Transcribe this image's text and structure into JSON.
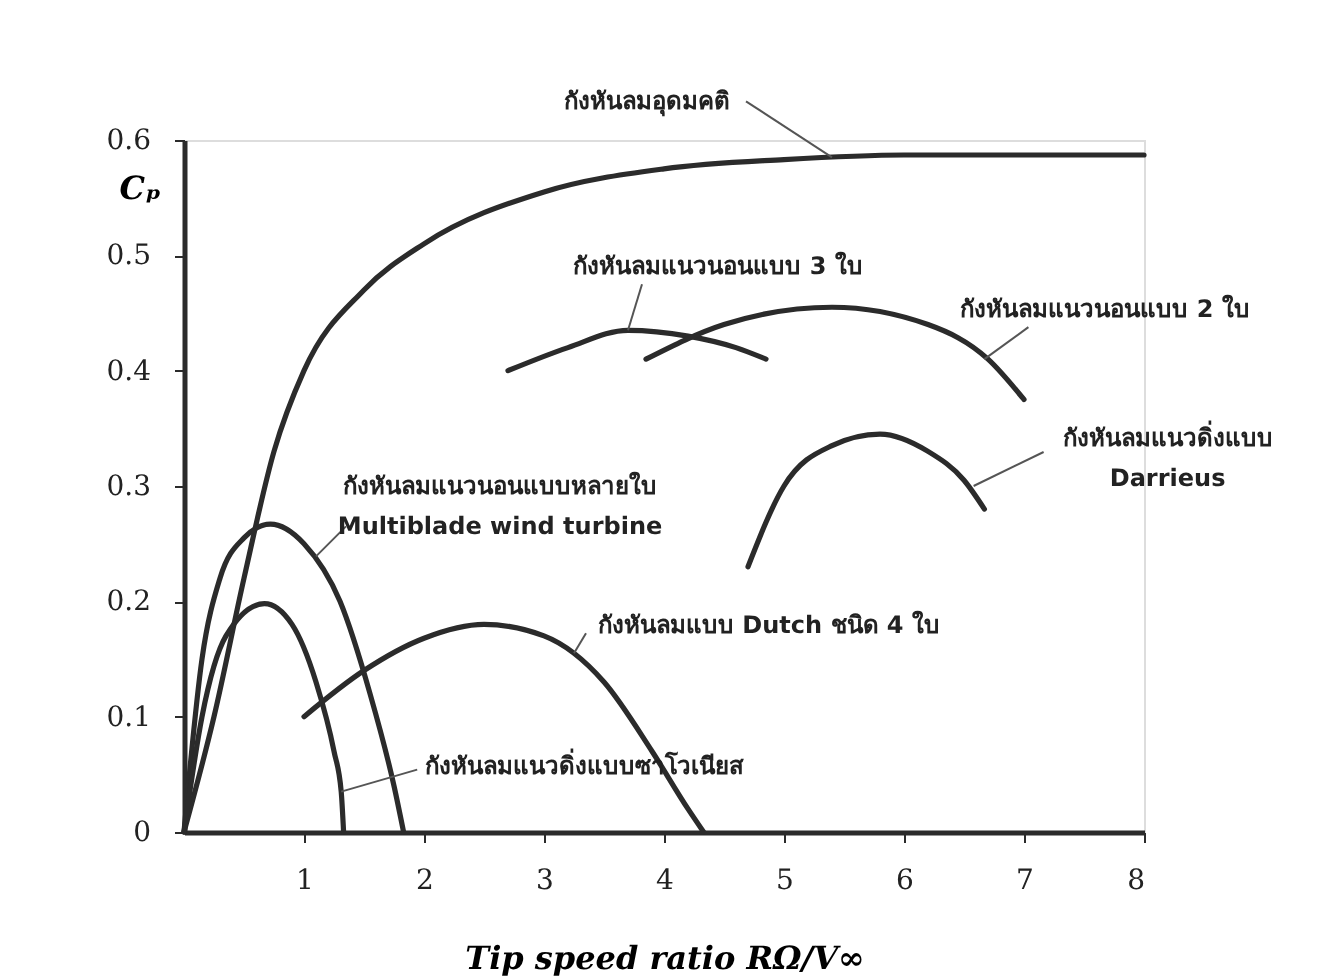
{
  "chart_data": {
    "type": "line",
    "xlabel": "Tip speed ratio     RΩ/V∞",
    "ylabel": "Cₚ",
    "xlim": [
      0,
      8
    ],
    "xticks": [
      1,
      2,
      3,
      4,
      5,
      6,
      7,
      8
    ],
    "ylim": [
      0,
      0.6
    ],
    "yticks": [
      {
        "value": 0,
        "label": "0"
      },
      0.1,
      0.2,
      0.3,
      0.4,
      0.5,
      0.6
    ],
    "grid": false,
    "series": [
      {
        "color": "#2b2b2b",
        "x": [
          0,
          0.25,
          0.5,
          0.75,
          1,
          1.5,
          2,
          3,
          4,
          5,
          6,
          8
        ],
        "values": [
          0,
          0.1,
          0.22,
          0.33,
          0.4,
          0.47,
          0.51,
          0.555,
          0.575,
          0.583,
          0.587,
          0.587
        ]
      },
      {
        "color": "#2b2b2b",
        "x": [
          2.7,
          3.2,
          3.7,
          4.2,
          4.6,
          4.85
        ],
        "values": [
          0.4,
          0.42,
          0.435,
          0.43,
          0.42,
          0.41
        ]
      },
      {
        "color": "#2b2b2b",
        "x": [
          3.85,
          4.5,
          5.4,
          6.2,
          6.7,
          7.0
        ],
        "values": [
          0.41,
          0.44,
          0.455,
          0.44,
          0.41,
          0.375
        ]
      },
      {
        "color": "#2b2b2b",
        "x": [
          4.7,
          5.0,
          5.4,
          5.8,
          6.2,
          6.5,
          6.67
        ],
        "values": [
          0.23,
          0.3,
          0.335,
          0.345,
          0.33,
          0.305,
          0.28
        ]
      },
      {
        "color": "#2b2b2b",
        "x": [
          0,
          0.15,
          0.3,
          0.5,
          0.72,
          1,
          1.3,
          1.55,
          1.75,
          1.83
        ],
        "values": [
          0,
          0.15,
          0.22,
          0.255,
          0.267,
          0.25,
          0.2,
          0.12,
          0.04,
          0
        ]
      },
      {
        "color": "#2b2b2b",
        "x": [
          0,
          0.15,
          0.35,
          0.67,
          0.9,
          1.1,
          1.25,
          1.31,
          1.33
        ],
        "values": [
          0,
          0.1,
          0.17,
          0.198,
          0.18,
          0.13,
          0.07,
          0.035,
          0
        ]
      },
      {
        "color": "#2b2b2b",
        "x": [
          1,
          1.5,
          2,
          2.5,
          3,
          3.5,
          3.9,
          4.2,
          4.33
        ],
        "values": [
          0.1,
          0.14,
          0.168,
          0.18,
          0.17,
          0.13,
          0.07,
          0.02,
          0
        ]
      }
    ],
    "annotations": [
      {
        "text": "กังหันลมอุดมคติ",
        "x": 5.4,
        "y": 0.585
      },
      {
        "text": "กังหันลมแนวนอนแบบ 3 ใบ",
        "x": 3.7,
        "y": 0.435
      },
      {
        "text": "กังหันลมแนวนอนแบบ 2 ใบ",
        "x": 6.67,
        "y": 0.41
      },
      {
        "text": "กังหันลมแนวดิ่งแบบ\nDarrieus",
        "x": 6.58,
        "y": 0.3
      },
      {
        "text": "กังหันลมแนวนอนแบบหลายใบ\nMultiblade wind turbine",
        "x": 1.1,
        "y": 0.239
      },
      {
        "text": "กังหันลมแบบ Dutch ชนิด 4 ใบ",
        "x": 3.25,
        "y": 0.155
      },
      {
        "text": "กังหันลมแนวดิ่งแบบซาโวเนียส",
        "x": 1.31,
        "y": 0.035
      }
    ]
  }
}
